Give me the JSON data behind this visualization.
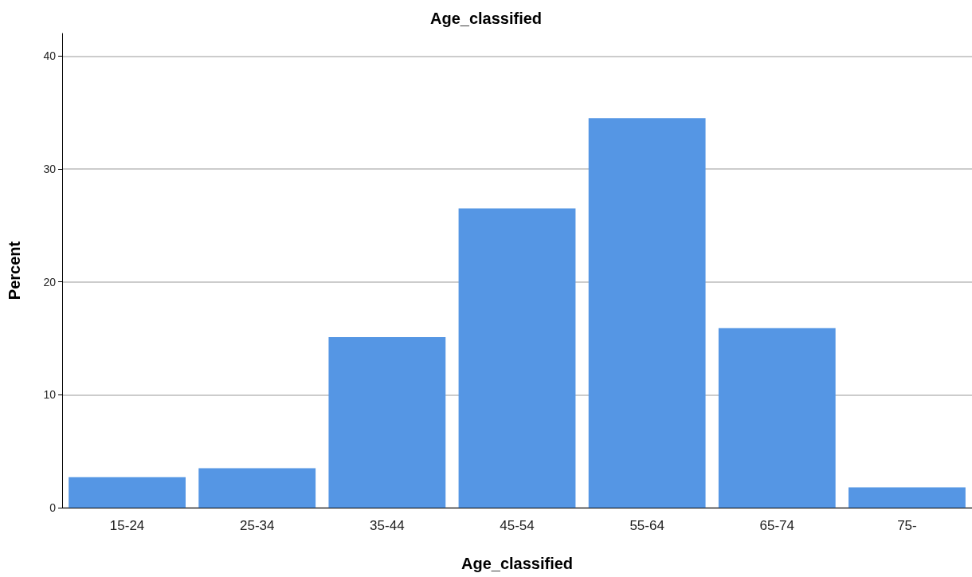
{
  "chart_data": {
    "type": "bar",
    "title": "Age_classified",
    "xlabel": "Age_classified",
    "ylabel": "Percent",
    "categories": [
      "15-24",
      "25-34",
      "35-44",
      "45-54",
      "55-64",
      "65-74",
      "75-"
    ],
    "values": [
      2.7,
      3.5,
      15.1,
      26.5,
      34.5,
      15.9,
      1.8
    ],
    "color": "#5596e4",
    "ylim": [
      0,
      42
    ],
    "yticks": [
      0,
      10,
      20,
      30,
      40
    ],
    "grid": "y"
  }
}
